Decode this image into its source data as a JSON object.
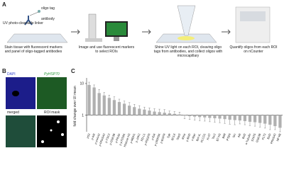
{
  "panel_a": {
    "label": "A",
    "oligo_tag": "oligo tag",
    "antibody": "antibody",
    "linker": "UV photo-cleavable linker",
    "steps": [
      "Stain tissue with fluorescent markers and panel of oligo-tagged antibodies",
      "Image and use fluorescent markers to select ROIs",
      "Shine UV light on each ROI, cleaving oligo tags from antibodies, and collect oligos with microcapillary",
      "Quantify oligos from each ROI on nCounter"
    ]
  },
  "panel_b": {
    "label": "B",
    "images": [
      "DAPI",
      "PyHSP70",
      "merged",
      "ROI mask"
    ]
  },
  "panel_c": {
    "label": "C"
  },
  "chart_data": {
    "type": "bar",
    "ylabel": "fold change over UI mean",
    "log_scale": true,
    "baseline": 1,
    "categories": [
      "pS3",
      "p-Akt",
      "p-p44/42",
      "p-PRAS40",
      "p-TSC2",
      "p-GSK3B",
      "p-PKAb",
      "p-p70S6K",
      "Histone H3",
      "p-MEK1",
      "p-JAK2",
      "PD-L1",
      "p-PDGFR",
      "p-Erk",
      "p-p90RSK",
      "p-EGFR",
      "Syk",
      "BCL6",
      "Stat3",
      "IKKa",
      "p-BAD",
      "c-Myc",
      "Bcl-xL",
      "PLCG1",
      "Ki-67",
      "Tsc2",
      "B7-H3",
      "BIM",
      "PTEN",
      "Src",
      "Akt",
      "Bcl2",
      "a-Tubulin",
      "STAT5",
      "GSK3B",
      "FLT3",
      "BAD",
      "PRAS40",
      "NF-kB"
    ],
    "values": [
      9,
      7.5,
      5,
      4.2,
      3.5,
      3,
      2.6,
      2.3,
      2,
      1.8,
      1.6,
      1.5,
      1.4,
      1.3,
      1.25,
      1.2,
      1.15,
      1.1,
      1.05,
      0.97,
      0.93,
      0.9,
      0.87,
      0.85,
      0.82,
      0.8,
      0.78,
      0.75,
      0.72,
      0.7,
      0.68,
      0.65,
      0.62,
      0.6,
      0.57,
      0.54,
      0.5,
      0.45,
      0.4
    ],
    "errors": [
      2,
      1.5,
      1.5,
      1,
      0.8,
      0.8,
      0.6,
      0.5,
      0.5,
      0.4,
      0.4,
      0.3,
      0.3,
      0.3,
      0.3,
      0.3,
      0.2,
      0.2,
      0.2,
      0.2,
      0.2,
      0.2,
      0.2,
      0.2,
      0.2,
      0.2,
      0.2,
      0.2,
      0.2,
      0.2,
      0.15,
      0.15,
      0.15,
      0.15,
      0.15,
      0.15,
      0.15,
      0.1,
      0.1
    ],
    "color": "#b0b0b0",
    "ylim": [
      0.3,
      15
    ],
    "yticks": [
      1,
      10
    ]
  }
}
